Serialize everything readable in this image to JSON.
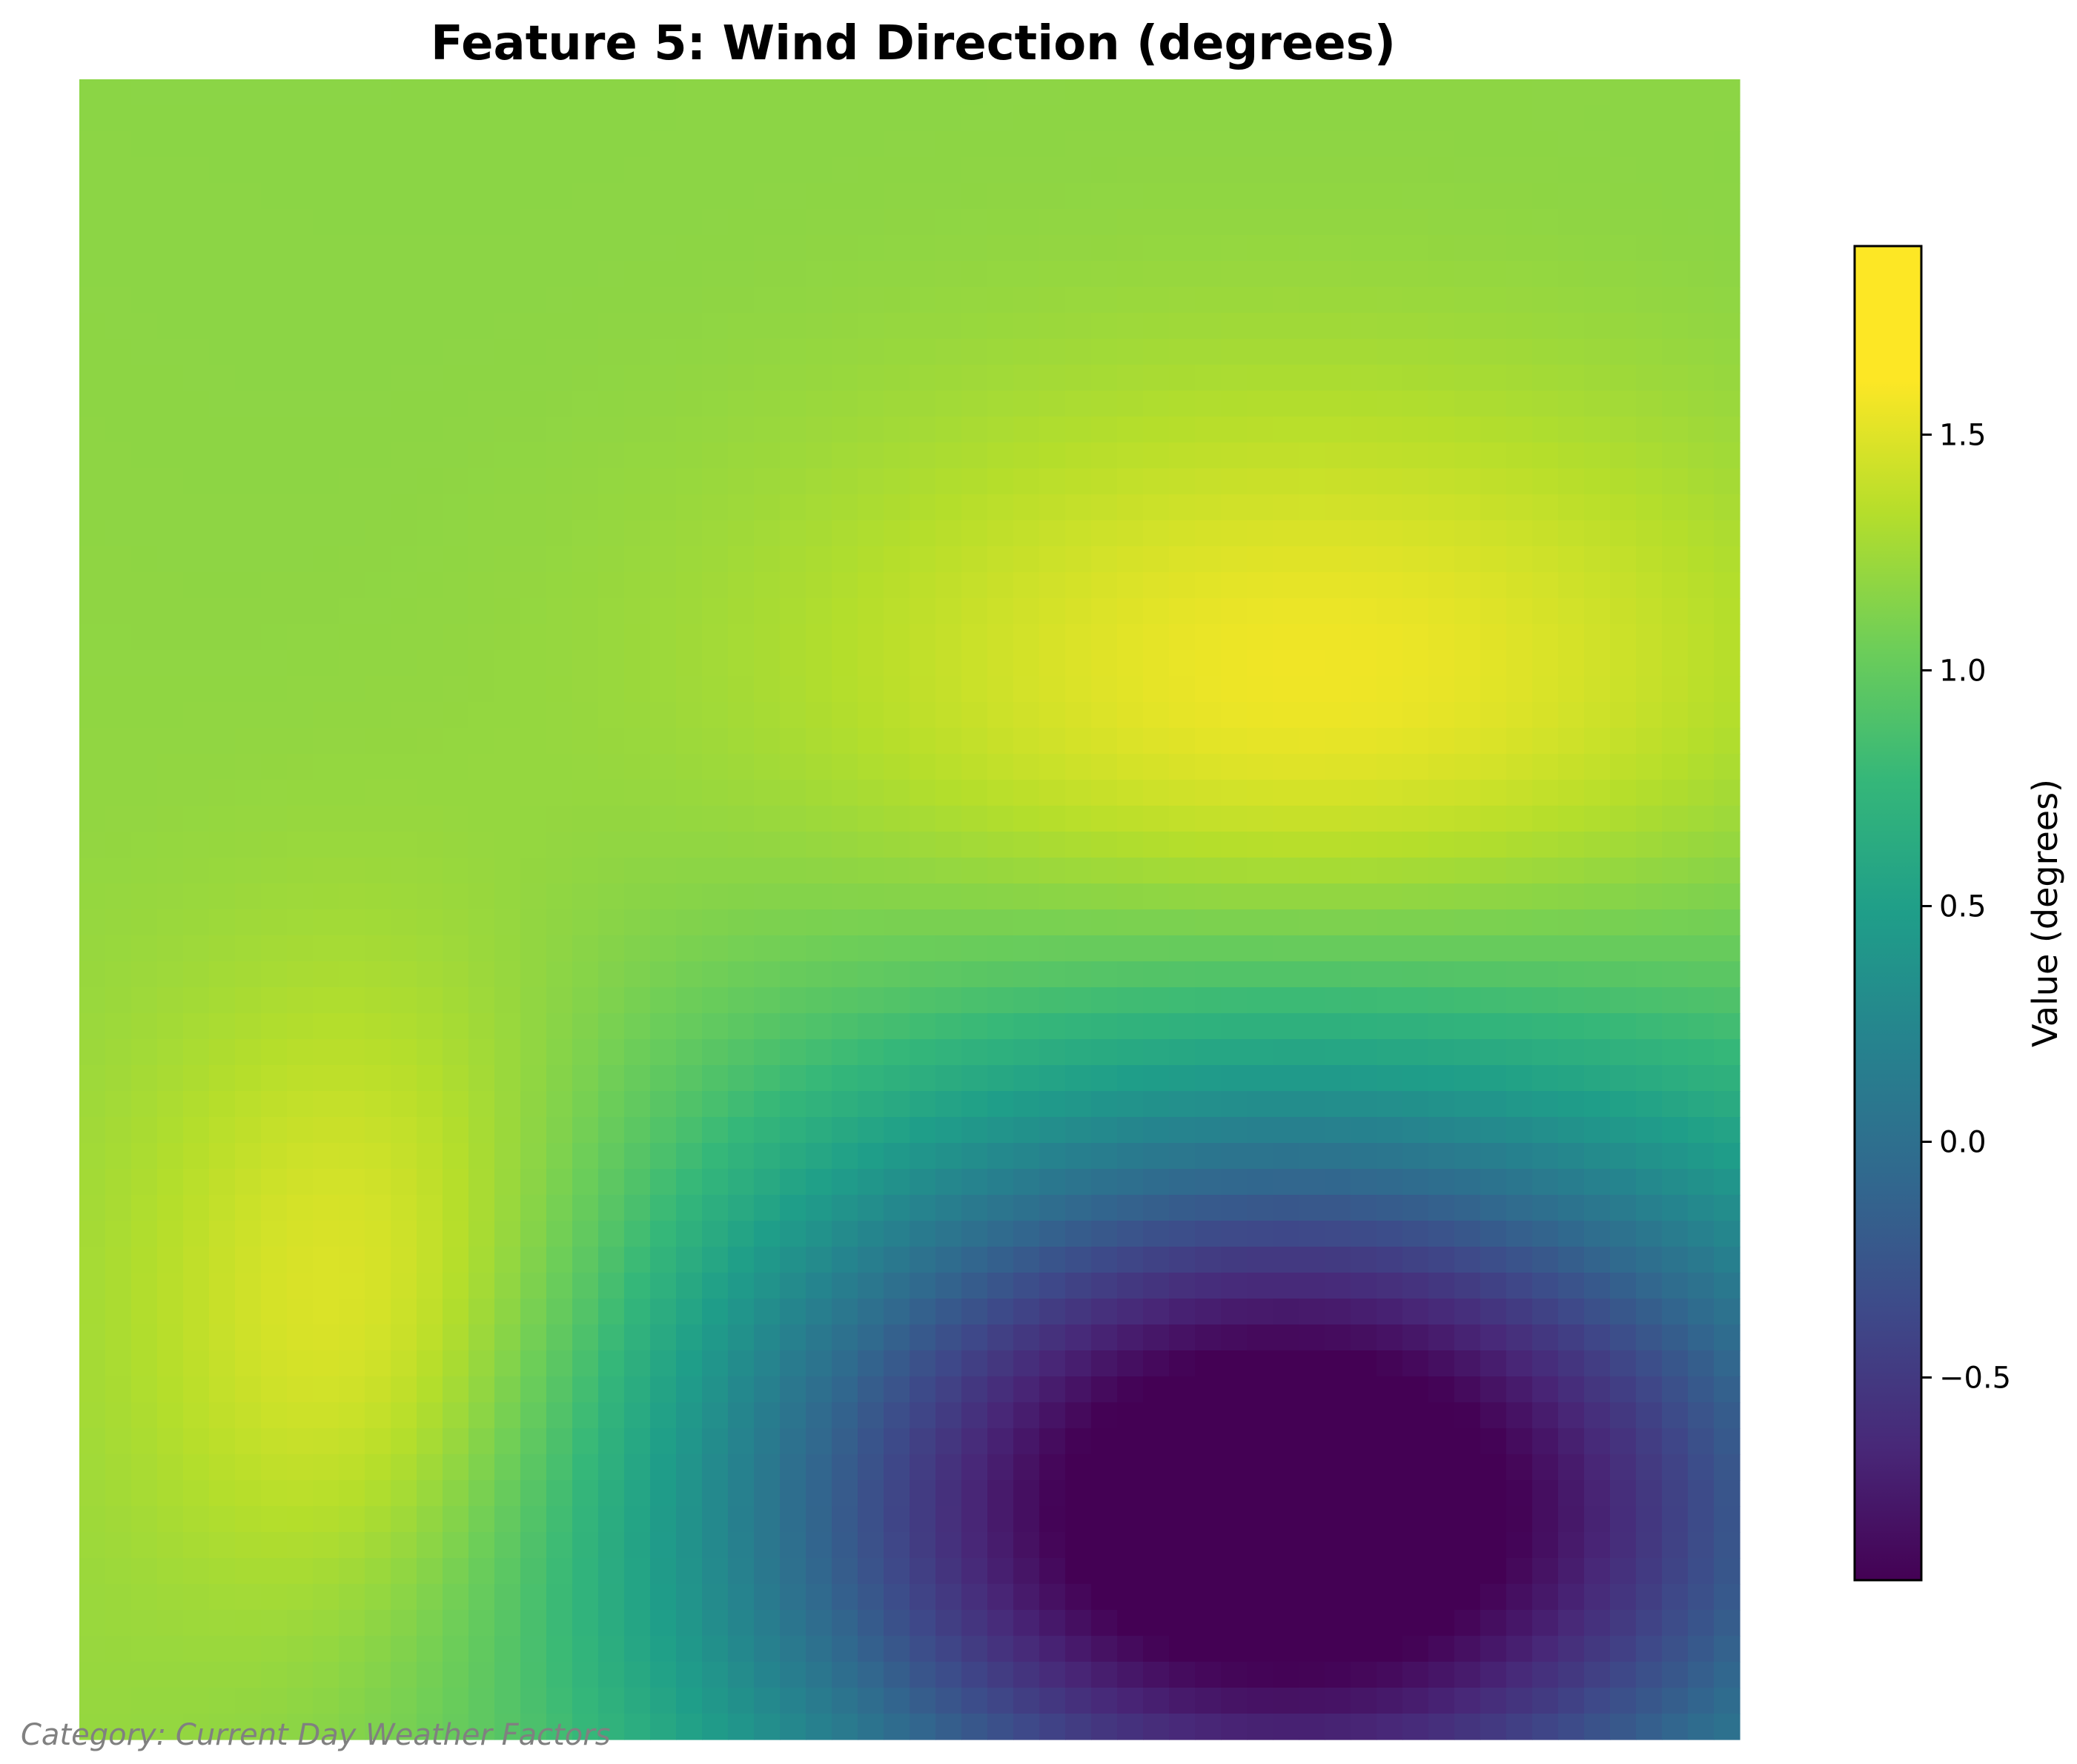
{
  "chart_data": {
    "type": "heatmap",
    "title": "Feature 5: Wind Direction (degrees)",
    "footnote": "Category: Current Day Weather Factors",
    "colormap": "viridis",
    "axes_visible": false,
    "grid_size": [
      64,
      64
    ],
    "value_range": [
      -0.93,
      1.9
    ],
    "field_description": "smooth field: high plateau (~1.8) centered upper-right and lower-left, minimum (~-0.93) lower-right, ~1.3 upper-left",
    "colorbar": {
      "label": "Value (degrees)",
      "ticks": [
        -0.5,
        0.0,
        0.5,
        1.0,
        1.5
      ],
      "tick_labels": [
        "−0.5",
        "0.0",
        "0.5",
        "1.0",
        "1.5"
      ],
      "range": [
        -0.93,
        1.9
      ],
      "placement": "right"
    }
  }
}
